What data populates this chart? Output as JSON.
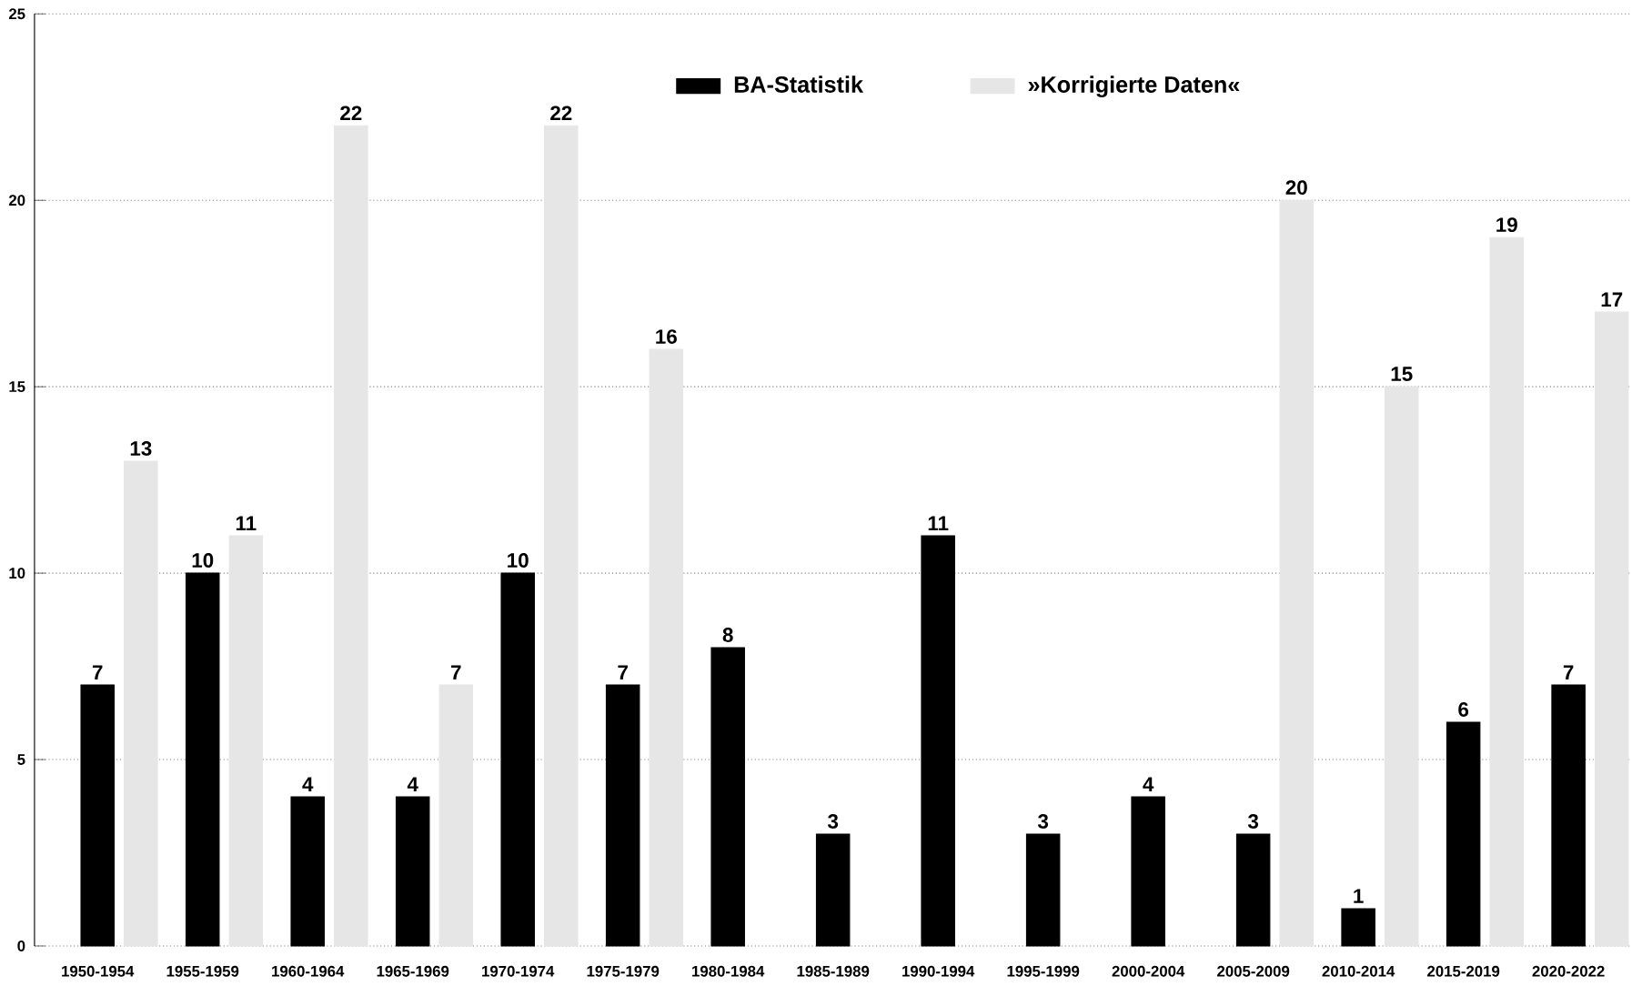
{
  "chart_data": {
    "type": "bar",
    "categories": [
      "1950-1954",
      "1955-1959",
      "1960-1964",
      "1965-1969",
      "1970-1974",
      "1975-1979",
      "1980-1984",
      "1985-1989",
      "1990-1994",
      "1995-1999",
      "2000-2004",
      "2005-2009",
      "2010-2014",
      "2015-2019",
      "2020-2022"
    ],
    "series": [
      {
        "name": "BA-Statistik",
        "color": "#000000",
        "values": [
          7,
          10,
          4,
          4,
          10,
          7,
          8,
          3,
          11,
          3,
          4,
          3,
          1,
          6,
          7
        ]
      },
      {
        "name": "»Korrigierte Daten«",
        "color": "#e6e6e6",
        "values": [
          13,
          11,
          22,
          7,
          22,
          16,
          null,
          null,
          null,
          null,
          null,
          20,
          15,
          19,
          17
        ]
      }
    ],
    "data_labels": true,
    "ylim": [
      0,
      25
    ],
    "yticks": [
      0,
      5,
      10,
      15,
      20,
      25
    ],
    "grid": "y",
    "legend": "top"
  }
}
